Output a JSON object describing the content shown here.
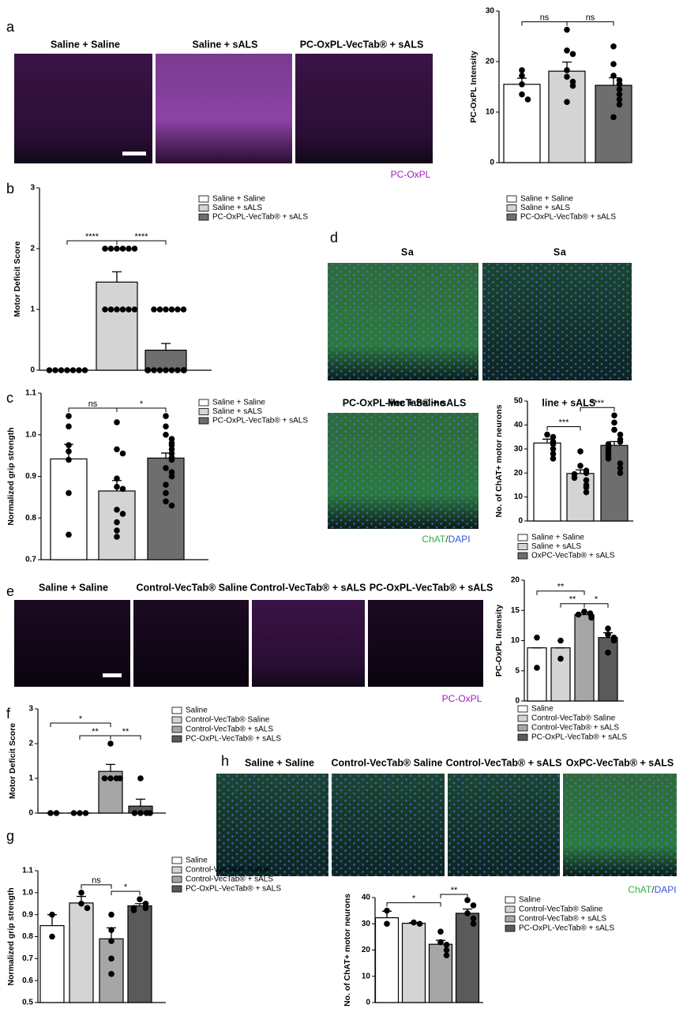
{
  "panels": {
    "labels": [
      "a",
      "b",
      "c",
      "d",
      "e",
      "f",
      "g",
      "h"
    ],
    "a": {
      "titles": [
        "Saline + Saline",
        "Saline + sALS",
        "PC-OxPL-VecTab® + sALS"
      ],
      "caption": "PC-OxPL"
    },
    "d": {
      "titles": [
        "Saline + Saline",
        "Saline + sALS",
        "PC-OxPL-VecTab® + sALS"
      ],
      "caption": [
        "ChAT",
        "/",
        "DAPI"
      ]
    },
    "e": {
      "titles": [
        "Saline + Saline",
        "Control-VecTab® Saline",
        "Control-VecTab® + sALS",
        "PC-OxPL-VecTab® + sALS"
      ],
      "caption": "PC-OxPL"
    },
    "h": {
      "titles": [
        "Saline + Saline",
        "Control-VecTab® Saline",
        "Control-VecTab® + sALS",
        "OxPC-VecTab® + sALS"
      ],
      "caption": [
        "ChAT",
        "/",
        "DAPI"
      ]
    }
  },
  "chart_data": [
    {
      "type": "bar",
      "y_label": "PC-OxPL Intensity",
      "categories": [
        "Saline + Saline",
        "Saline + sALS",
        "PC-OxPL-VecTab® + sALS"
      ],
      "colors": [
        "#ffffff",
        "#d4d4d4",
        "#6e6e6e"
      ],
      "values": [
        15.5,
        18.1,
        15.3
      ],
      "errors": [
        1.2,
        1.8,
        1.5
      ],
      "points": [
        [
          18.3,
          17.2,
          15.5,
          13.5,
          12.5
        ],
        [
          26.3,
          22.2,
          21.5,
          18.3,
          17,
          16,
          15.2,
          12
        ],
        [
          23,
          19.5,
          17.2,
          16.3,
          15.5,
          14.5,
          13.5,
          12.5,
          11.5,
          9
        ]
      ],
      "significance": [
        {
          "groups": [
            0,
            1
          ],
          "label": "ns"
        },
        {
          "groups": [
            1,
            2
          ],
          "label": "ns"
        }
      ],
      "ylim": [
        0,
        30
      ],
      "yticks": [
        0,
        10,
        20,
        30
      ]
    },
    {
      "type": "bar",
      "y_label": "Motor Deficit Score",
      "categories": [
        "Saline + Saline",
        "Saline + sALS",
        "PC-OxPL-VecTab®  + sALS"
      ],
      "colors": [
        "#ffffff",
        "#d4d4d4",
        "#6e6e6e"
      ],
      "values": [
        0,
        1.45,
        0.33
      ],
      "errors": [
        0,
        0.17,
        0.11
      ],
      "points": [
        [
          0,
          0,
          0,
          0,
          0,
          0,
          0
        ],
        [
          2,
          2,
          2,
          2,
          2,
          2,
          1,
          1,
          1,
          1,
          1,
          1
        ],
        [
          1,
          1,
          1,
          1,
          1,
          1,
          0,
          0,
          0,
          0,
          0,
          0,
          0,
          0,
          0,
          0,
          0,
          0
        ]
      ],
      "significance": [
        {
          "groups": [
            0,
            1
          ],
          "label": "****"
        },
        {
          "groups": [
            1,
            2
          ],
          "label": "****"
        }
      ],
      "ylim": [
        0,
        3
      ],
      "yticks": [
        0,
        1,
        2,
        3
      ]
    },
    {
      "type": "bar",
      "y_label": "Normalized grip strength",
      "categories": [
        "Saline + Saline",
        "Saline + sALS",
        "PC-OxPL-VecTab® + sALS"
      ],
      "colors": [
        "#ffffff",
        "#d4d4d4",
        "#6e6e6e"
      ],
      "values": [
        0.942,
        0.865,
        0.944
      ],
      "errors": [
        0.035,
        0.025,
        0.012
      ],
      "points": [
        [
          1.045,
          1.02,
          0.975,
          0.96,
          0.94,
          0.86,
          0.76
        ],
        [
          1.03,
          0.965,
          0.955,
          0.895,
          0.875,
          0.87,
          0.82,
          0.81,
          0.79,
          0.77,
          0.755
        ],
        [
          1.045,
          1.02,
          1.0,
          0.99,
          0.98,
          0.975,
          0.965,
          0.955,
          0.945,
          0.94,
          0.92,
          0.91,
          0.9,
          0.88,
          0.86,
          0.84,
          0.83
        ]
      ],
      "significance": [
        {
          "groups": [
            0,
            1
          ],
          "label": "ns"
        },
        {
          "groups": [
            1,
            2
          ],
          "label": "*"
        }
      ],
      "ylim": [
        0.7,
        1.1
      ],
      "yticks": [
        0.7,
        0.8,
        0.9,
        {
          "value": 1,
          "label": "1.0"
        },
        1.1
      ]
    },
    {
      "type": "bar",
      "y_label": "No. of ChAT+ motor neurons",
      "categories": [
        "Saline + Saline",
        "Saline + sALS",
        "OxPC-VecTab® + sALS"
      ],
      "colors": [
        "#ffffff",
        "#d4d4d4",
        "#6e6e6e"
      ],
      "values": [
        32.5,
        19.8,
        31.5
      ],
      "errors": [
        1.6,
        1.5,
        1.6
      ],
      "points": [
        [
          36,
          35,
          33,
          32,
          30,
          28,
          26
        ],
        [
          29,
          23,
          21,
          20,
          19.5,
          18,
          17,
          15,
          14,
          12
        ],
        [
          44,
          41,
          38,
          36,
          34,
          33,
          32,
          31,
          30,
          29,
          28,
          27,
          26,
          24,
          22,
          20
        ]
      ],
      "significance": [
        {
          "groups": [
            0,
            1
          ],
          "label": "***"
        },
        {
          "groups": [
            1,
            2
          ],
          "label": "****"
        }
      ],
      "ylim": [
        0,
        50
      ],
      "yticks": [
        0,
        10,
        20,
        30,
        40,
        50
      ]
    },
    {
      "type": "bar",
      "y_label": "PC-OxPL Intensity",
      "categories": [
        "Saline",
        "Control-VecTab® Saline",
        "Control-VecTab® + sALS",
        "PC-OxPL-VecTab® + sALS"
      ],
      "colors": [
        "#ffffff",
        "#d4d4d4",
        "#a6a6a6",
        "#5a5a5a"
      ],
      "values": [
        8.8,
        8.8,
        14.3,
        10.5
      ],
      "errors": [
        0,
        0,
        0.3,
        0.8
      ],
      "points": [
        [
          10.5,
          5.5
        ],
        [
          10,
          7
        ],
        [
          14.8,
          14.5,
          14.3,
          14,
          13.8
        ],
        [
          12,
          11,
          10.5,
          10,
          8
        ]
      ],
      "significance": [
        {
          "groups": [
            1,
            2
          ],
          "label": "**"
        },
        {
          "groups": [
            0,
            2
          ],
          "label": "**"
        },
        {
          "groups": [
            2,
            3
          ],
          "label": "*"
        }
      ],
      "ylim": [
        0,
        20
      ],
      "yticks": [
        0,
        5,
        10,
        15,
        20
      ]
    },
    {
      "type": "bar",
      "y_label": "Motor Deficit Score",
      "categories": [
        "Saline",
        "Control-VecTab® Saline",
        "Control-VecTab® + sALS",
        "PC-OxPL-VecTab® + sALS"
      ],
      "colors": [
        "#ffffff",
        "#d4d4d4",
        "#a6a6a6",
        "#5a5a5a"
      ],
      "values": [
        0,
        0,
        1.2,
        0.2
      ],
      "errors": [
        0,
        0,
        0.2,
        0.2
      ],
      "points": [
        [
          0,
          0
        ],
        [
          0,
          0,
          0
        ],
        [
          2,
          1,
          1,
          1,
          1
        ],
        [
          1,
          0,
          0,
          0,
          0
        ]
      ],
      "significance": [
        {
          "groups": [
            1,
            2
          ],
          "label": "**"
        },
        {
          "groups": [
            0,
            2
          ],
          "label": "*"
        },
        {
          "groups": [
            2,
            3
          ],
          "label": "**"
        }
      ],
      "ylim": [
        0,
        3
      ],
      "yticks": [
        0,
        1,
        2,
        3
      ]
    },
    {
      "type": "bar",
      "y_label": "Normalized grip strength",
      "categories": [
        "Saline",
        "Control-VecTab® Saline",
        "Control-VecTab® + sALS",
        "PC-OxPL-VecTab® + sALS"
      ],
      "colors": [
        "#ffffff",
        "#d4d4d4",
        "#a6a6a6",
        "#5a5a5a"
      ],
      "values": [
        0.85,
        0.953,
        0.79,
        0.94
      ],
      "errors": [
        0.05,
        0.03,
        0.05,
        0.01
      ],
      "points": [
        [
          0.9,
          0.8
        ],
        [
          1.0,
          0.95,
          0.93
        ],
        [
          0.9,
          0.83,
          0.78,
          0.7,
          0.63
        ],
        [
          0.97,
          0.95,
          0.93,
          0.93,
          0.92
        ]
      ],
      "significance": [
        {
          "groups": [
            1,
            2
          ],
          "label": "ns"
        },
        {
          "groups": [
            2,
            3
          ],
          "label": "*"
        }
      ],
      "ylim": [
        0.5,
        1.1
      ],
      "yticks": [
        0.5,
        0.6,
        0.7,
        0.8,
        0.9,
        {
          "value": 1,
          "label": "1.0"
        },
        1.1
      ]
    },
    {
      "type": "bar",
      "y_label": "No. of ChAT+ motor neurons",
      "categories": [
        "Saline",
        "Control-VecTab® Saline",
        "Control-VecTab® + sALS",
        "PC-OxPL-VecTab® + sALS"
      ],
      "colors": [
        "#ffffff",
        "#d4d4d4",
        "#a6a6a6",
        "#5a5a5a"
      ],
      "values": [
        32.3,
        30.2,
        22.2,
        34
      ],
      "errors": [
        2.5,
        0.3,
        1.5,
        1.6
      ],
      "points": [
        [
          35,
          30
        ],
        [
          30.5,
          30
        ],
        [
          27,
          23,
          22,
          20,
          18
        ],
        [
          39,
          37,
          34,
          32,
          30
        ]
      ],
      "significance": [
        {
          "groups": [
            0,
            2
          ],
          "label": "*"
        },
        {
          "groups": [
            2,
            3
          ],
          "label": "**"
        }
      ],
      "ylim": [
        0,
        40
      ],
      "yticks": [
        0,
        10,
        20,
        30,
        40
      ]
    }
  ]
}
